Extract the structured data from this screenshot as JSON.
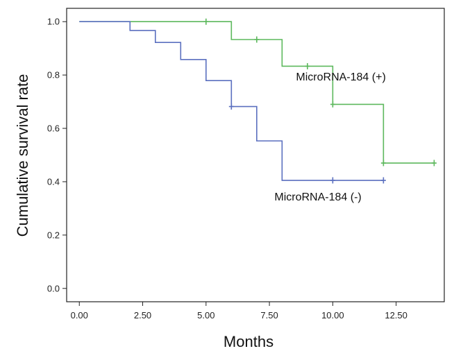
{
  "chart_data": {
    "type": "line",
    "subtype": "kaplan-meier-step",
    "title": "",
    "xlabel": "Months",
    "ylabel": "Cumulative survival rate",
    "xlim": [
      -0.5,
      14.4
    ],
    "ylim": [
      -0.05,
      1.05
    ],
    "x_ticks": [
      "0.00",
      "2.50",
      "5.00",
      "7.50",
      "10.00",
      "12.50"
    ],
    "x_tick_values": [
      0,
      2.5,
      5,
      7.5,
      10,
      12.5
    ],
    "y_ticks": [
      "0.0",
      "0.2",
      "0.4",
      "0.6",
      "0.8",
      "1.0"
    ],
    "y_tick_values": [
      0,
      0.2,
      0.4,
      0.6,
      0.8,
      1.0
    ],
    "grid": false,
    "legend": "none",
    "series": [
      {
        "name": "MicroRNA-184 (+)",
        "color": "#5cb85c",
        "steps": [
          [
            0,
            1.0
          ],
          [
            6,
            0.933
          ],
          [
            8,
            0.833
          ],
          [
            10,
            0.69
          ],
          [
            12,
            0.47
          ]
        ],
        "end_x": 14,
        "censored": [
          [
            5,
            1.0
          ],
          [
            7,
            0.933
          ],
          [
            9,
            0.833
          ],
          [
            10,
            0.69
          ],
          [
            12,
            0.47
          ],
          [
            14,
            0.47
          ]
        ],
        "label_at": [
          8.55,
          0.78
        ]
      },
      {
        "name": "MicroRNA-184 (-)",
        "color": "#5a6fbf",
        "steps": [
          [
            0,
            1.0
          ],
          [
            2,
            0.967
          ],
          [
            3,
            0.922
          ],
          [
            4,
            0.858
          ],
          [
            5,
            0.779
          ],
          [
            6,
            0.682
          ],
          [
            7,
            0.553
          ],
          [
            8,
            0.405
          ]
        ],
        "end_x": 12,
        "censored": [
          [
            6,
            0.682
          ],
          [
            10,
            0.405
          ],
          [
            12,
            0.405
          ]
        ],
        "label_at": [
          7.7,
          0.33
        ]
      }
    ]
  }
}
